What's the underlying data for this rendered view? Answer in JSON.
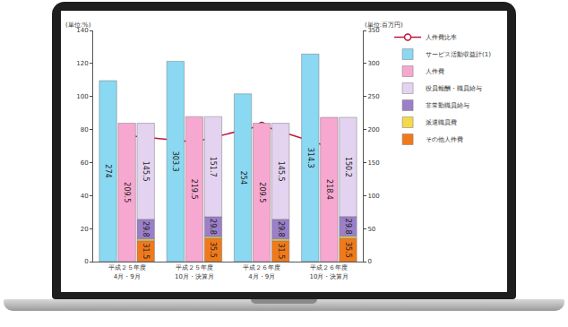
{
  "chart_data": {
    "type": "bar",
    "categories": [
      "平成２５年度\n4月・9月",
      "平成２５年度\n10月・決算月",
      "平成２６年度\n4月・9月",
      "平成２６年度\n10月・決算月"
    ],
    "ylabel": "(単位:%)",
    "y2label": "(単位:百万円)",
    "ylim": [
      0,
      140
    ],
    "yticks": [
      0,
      20,
      40,
      60,
      80,
      100,
      120,
      140
    ],
    "y2lim": [
      0,
      350
    ],
    "y2ticks": [
      0,
      50,
      100,
      150,
      200,
      250,
      300,
      350
    ],
    "grid": false,
    "legend": "right",
    "data_labels": true,
    "series": [
      {
        "name": "人件費比率",
        "type": "line",
        "marker": "circle",
        "line_style": "solid",
        "color": "#c0143c",
        "values": [
          76.4,
          72.4,
          82.5,
          69.5
        ]
      },
      {
        "name": "サービス活動収益計(1)",
        "type": "bar",
        "axis": "y2",
        "color": "#8ad8f2",
        "values": [
          274.0,
          303.3,
          254.0,
          314.3
        ]
      },
      {
        "name": "人件費",
        "type": "bar",
        "axis": "y2",
        "color": "#f7a8d0",
        "values": [
          209.5,
          219.5,
          209.5,
          218.4
        ]
      },
      {
        "name": "役員報酬・職員給与",
        "type": "bar",
        "axis": "y2",
        "stacked": true,
        "color": "#e3d3f0",
        "values": [
          145.5,
          151.7,
          145.5,
          150.2
        ]
      },
      {
        "name": "非常勤職員給与",
        "type": "bar",
        "axis": "y2",
        "stacked": true,
        "color": "#9b7fc9",
        "values": [
          29.8,
          29.8,
          29.8,
          29.8
        ]
      },
      {
        "name": "派遣職員費",
        "type": "bar",
        "axis": "y2",
        "stacked": true,
        "data_labels": false,
        "color": "#f5d94a",
        "values": [
          2.7,
          2.5,
          2.7,
          2.9
        ]
      },
      {
        "name": "その他人件費",
        "type": "bar",
        "axis": "y2",
        "stacked": true,
        "color": "#f07a1a",
        "values": [
          31.5,
          35.5,
          31.5,
          35.5
        ]
      }
    ]
  }
}
